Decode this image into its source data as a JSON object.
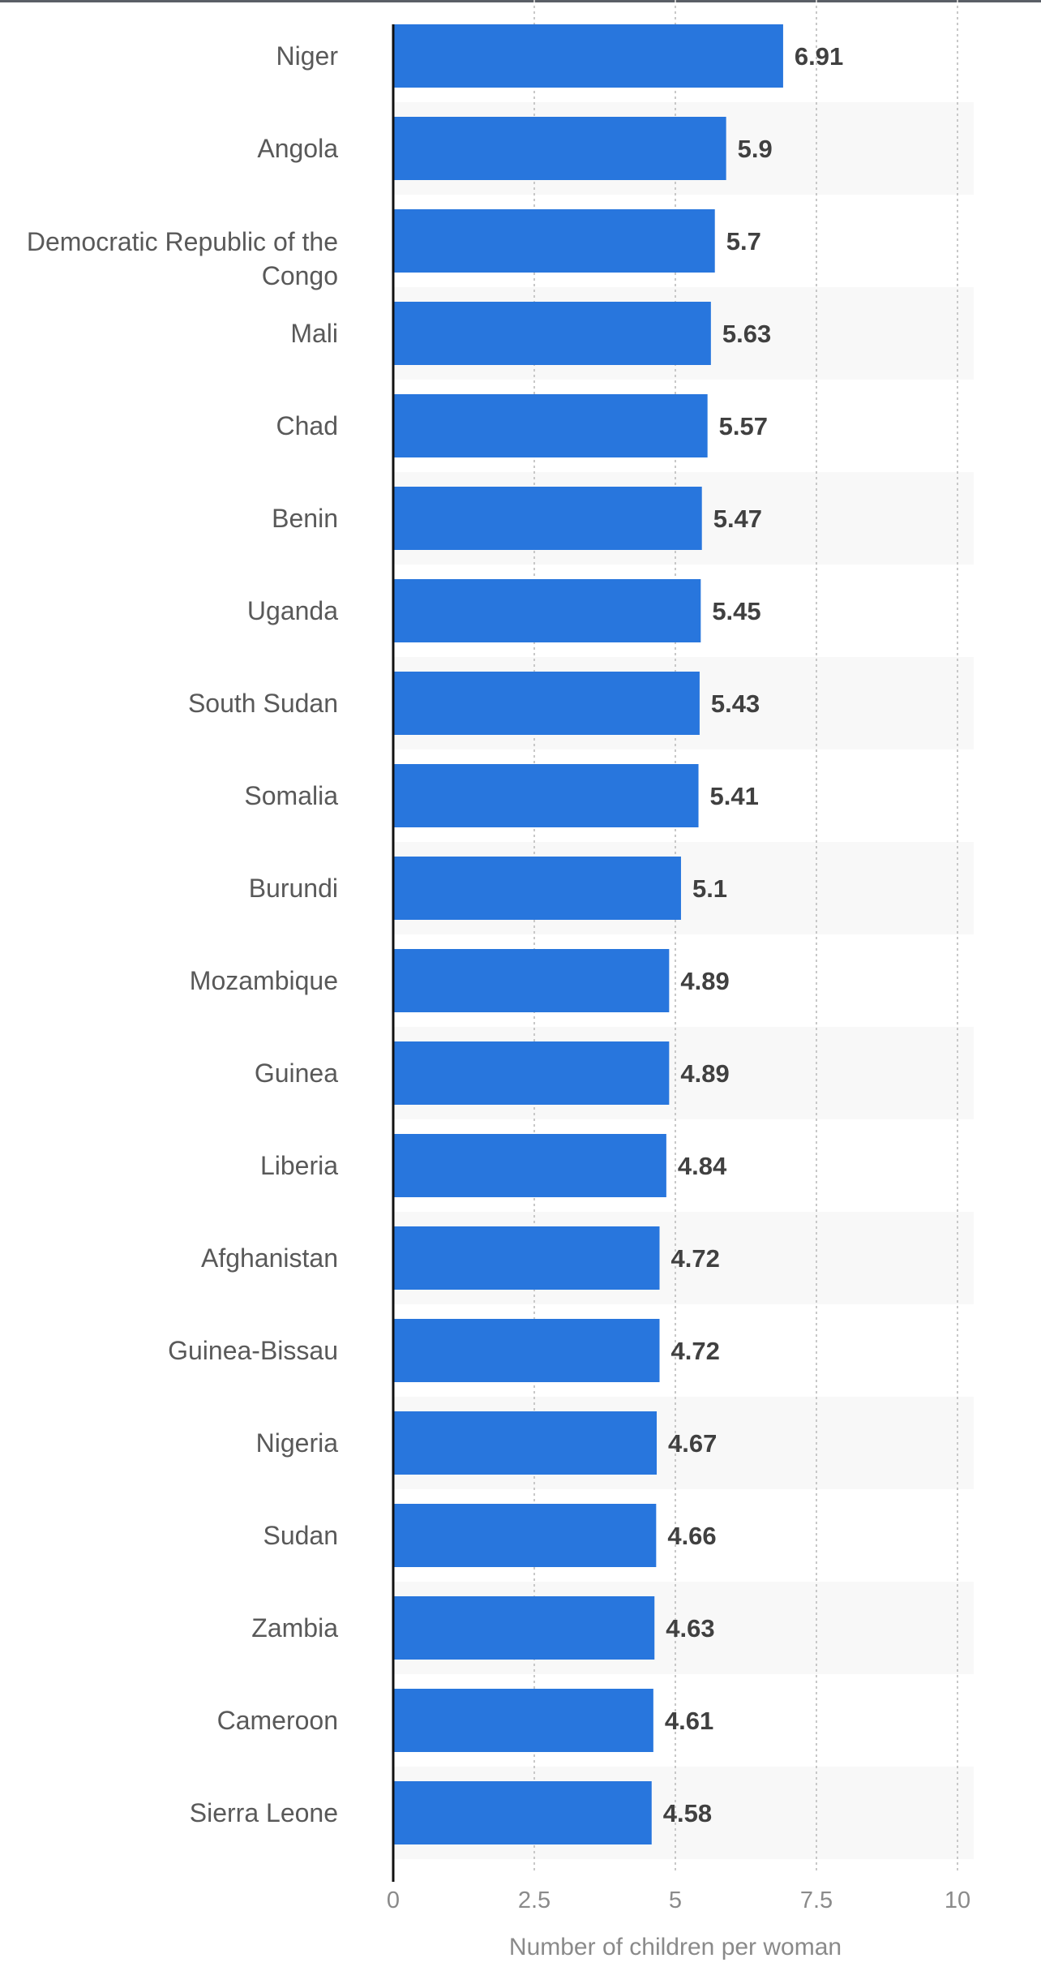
{
  "colors": {
    "bar": "#2876dd",
    "band": "#f8f8f8",
    "grid": "#c8c8c8",
    "axis": "#111111",
    "category_label": "#595959",
    "value_label": "#404040",
    "tick_label": "#8a8a8a"
  },
  "chart_data": {
    "type": "bar",
    "orientation": "horizontal",
    "categories": [
      "Niger",
      "Angola",
      "Democratic Republic of the Congo",
      "Mali",
      "Chad",
      "Benin",
      "Uganda",
      "South Sudan",
      "Somalia",
      "Burundi",
      "Mozambique",
      "Guinea",
      "Liberia",
      "Afghanistan",
      "Guinea-Bissau",
      "Nigeria",
      "Sudan",
      "Zambia",
      "Cameroon",
      "Sierra Leone"
    ],
    "values": [
      6.91,
      5.9,
      5.7,
      5.63,
      5.57,
      5.47,
      5.45,
      5.43,
      5.41,
      5.1,
      4.89,
      4.89,
      4.84,
      4.72,
      4.72,
      4.67,
      4.66,
      4.63,
      4.61,
      4.58
    ],
    "value_labels": [
      "6.91",
      "5.9",
      "5.7",
      "5.63",
      "5.57",
      "5.47",
      "5.45",
      "5.43",
      "5.41",
      "5.1",
      "4.89",
      "4.89",
      "4.84",
      "4.72",
      "4.72",
      "4.67",
      "4.66",
      "4.63",
      "4.61",
      "4.58"
    ],
    "xlabel": "Number of children per woman",
    "ylabel": "",
    "xlim": [
      0,
      10
    ],
    "ticks": [
      0,
      2.5,
      5,
      7.5,
      10
    ],
    "tick_labels": [
      "0",
      "2.5",
      "5",
      "7.5",
      "10"
    ],
    "grid": true,
    "grid_style": "dotted vertical",
    "alternating_row_bands": true
  }
}
